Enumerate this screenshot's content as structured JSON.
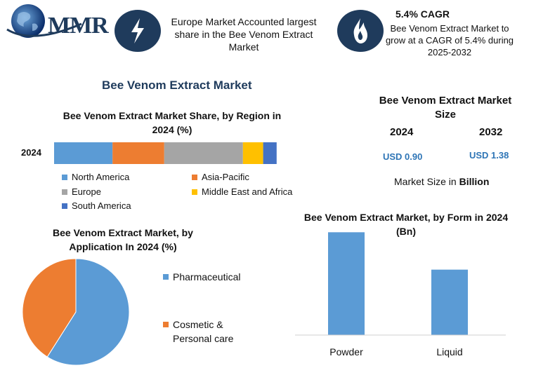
{
  "brand": {
    "name": "MMR"
  },
  "headline1": {
    "text": "Europe Market Accounted largest share in the Bee Venom Extract Market"
  },
  "headline2": {
    "title": "5.4% CAGR",
    "text": "Bee Venom Extract Market to grow at a CAGR of 5.4% during 2025-2032"
  },
  "main_title": "Bee Venom Extract Market",
  "market_size": {
    "title": "Bee Venom Extract Market Size",
    "years": [
      "2024",
      "2032"
    ],
    "values": [
      "USD 0.90",
      "USD 1.38"
    ],
    "unit_prefix": "Market Size in ",
    "unit_bold": "Billion"
  },
  "icons": {
    "headline1": "lightning-icon",
    "headline2": "flame-icon",
    "logo": "globe-icon"
  },
  "colors": {
    "North America": "#5b9bd5",
    "Asia-Pacific": "#ed7d31",
    "Europe": "#a5a5a5",
    "Middle East and Africa": "#ffc000",
    "South America": "#4472c4",
    "brand": "#1f3b5c"
  },
  "chart_data": [
    {
      "type": "bar",
      "orientation": "horizontal-stacked",
      "title": "Bee Venom Extract Market Share, by Region in 2024 (%)",
      "categories": [
        "2024"
      ],
      "series": [
        {
          "name": "North America",
          "values": [
            26
          ]
        },
        {
          "name": "Asia-Pacific",
          "values": [
            23
          ]
        },
        {
          "name": "Europe",
          "values": [
            35
          ]
        },
        {
          "name": "Middle East and Africa",
          "values": [
            9
          ]
        },
        {
          "name": "South America",
          "values": [
            6
          ]
        }
      ],
      "xlim": [
        0,
        100
      ],
      "legend": "bottom"
    },
    {
      "type": "pie",
      "title": "Bee Venom Extract Market, by Application In 2024 (%)",
      "labels": [
        "Pharmaceutical",
        "Cosmetic & Personal care"
      ],
      "values": [
        59,
        41
      ],
      "legend": "right"
    },
    {
      "type": "bar",
      "title": "Bee Venom Extract Market, by Form in 2024 (Bn)",
      "categories": [
        "Powder",
        "Liquid"
      ],
      "values": [
        0.55,
        0.35
      ],
      "ylim": [
        0,
        0.6
      ],
      "grid": false
    }
  ]
}
